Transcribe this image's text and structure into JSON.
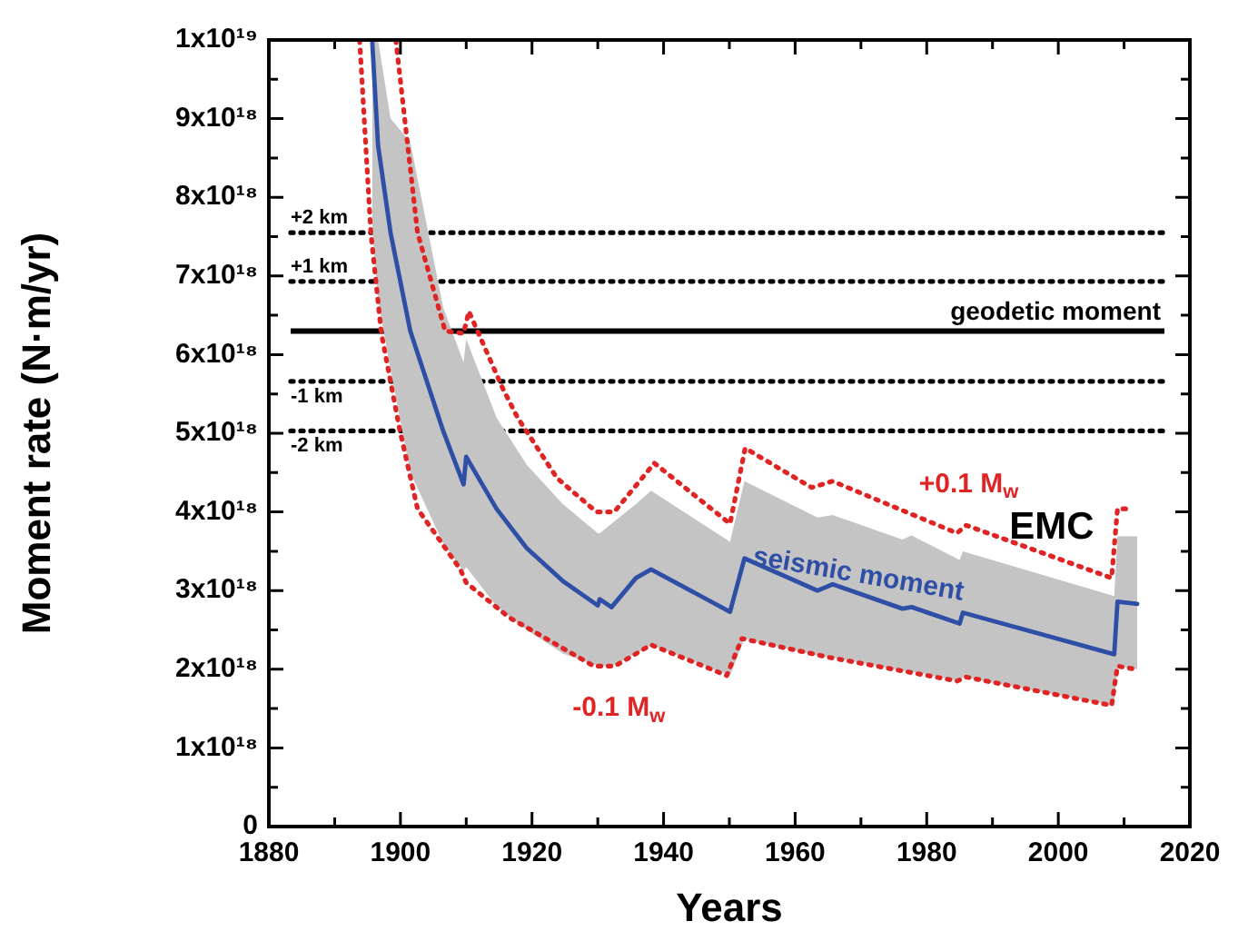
{
  "chart_data": {
    "type": "line",
    "xlabel": "Years",
    "ylabel": "Moment rate (N·m/yr)",
    "xlim": [
      1880,
      2020
    ],
    "xticks": [
      1880,
      {
        "value": 1890,
        "label": null
      },
      1900,
      {
        "value": 1910,
        "label": null
      },
      1920,
      {
        "value": 1930,
        "label": null
      },
      1940,
      {
        "value": 1950,
        "label": null
      },
      1960,
      {
        "value": 1970,
        "label": null
      },
      1980,
      {
        "value": 1990,
        "label": null
      },
      2000,
      {
        "value": 2010,
        "label": null
      },
      2020
    ],
    "ylim": [
      0,
      1e+19
    ],
    "yticks": [
      0,
      {
        "value": 5e+17,
        "label": null
      },
      {
        "value": 1e+18,
        "label": "1x10¹⁸"
      },
      {
        "value": 1.5e+18,
        "label": null
      },
      {
        "value": 2e+18,
        "label": "2x10¹⁸"
      },
      {
        "value": 2.5e+18,
        "label": null
      },
      {
        "value": 3e+18,
        "label": "3x10¹⁸"
      },
      {
        "value": 3.5e+18,
        "label": null
      },
      {
        "value": 4e+18,
        "label": "4x10¹⁸"
      },
      {
        "value": 4.5e+18,
        "label": null
      },
      {
        "value": 5e+18,
        "label": "5x10¹⁸"
      },
      {
        "value": 5.5e+18,
        "label": null
      },
      {
        "value": 6e+18,
        "label": "6x10¹⁸"
      },
      {
        "value": 6.5e+18,
        "label": null
      },
      {
        "value": 7e+18,
        "label": "7x10¹⁸"
      },
      {
        "value": 7.5e+18,
        "label": null
      },
      {
        "value": 8e+18,
        "label": "8x10¹⁸"
      },
      {
        "value": 8.5e+18,
        "label": null
      },
      {
        "value": 9e+18,
        "label": "9x10¹⁸"
      },
      {
        "value": 9.5e+18,
        "label": null
      },
      {
        "value": 1e+19,
        "label": "1x10¹⁹"
      }
    ],
    "legend": false,
    "marker": "none",
    "series": [
      {
        "name": "seismic moment",
        "color": "#2f4fa6",
        "line_style": "solid",
        "x": [
          1895.7,
          1896.6,
          1898.5,
          1901.5,
          1906.5,
          1909.6,
          1910.0,
          1914.6,
          1919.2,
          1924.7,
          1930.0,
          1930.3,
          1932.1,
          1935.8,
          1938.1,
          1950.1,
          1952.3,
          1963.4,
          1965.7,
          1976.3,
          1977.7,
          1985.0,
          1985.5,
          2008.5,
          2009.0,
          2012.0
        ],
        "values": [
          1e+19,
          8.66e+18,
          7.55e+18,
          6.3e+18,
          5.03e+18,
          4.35e+18,
          4.7e+18,
          4.04e+18,
          3.54e+18,
          3.12e+18,
          2.81e+18,
          2.89e+18,
          2.79e+18,
          3.16e+18,
          3.27e+18,
          2.73e+18,
          3.41e+18,
          3e+18,
          3.08e+18,
          2.77e+18,
          2.79e+18,
          2.58e+18,
          2.72e+18,
          2.19e+18,
          2.86e+18,
          2.83e+18
        ],
        "lower": [
          7.6e+18,
          6.7e+18,
          5.8e+18,
          4.5e+18,
          3.6e+18,
          3.25e+18,
          3.3e+18,
          2.8e+18,
          2.5e+18,
          2.2e+18,
          2.04e+18,
          2.04e+18,
          2.04e+18,
          2.2e+18,
          2.31e+18,
          1.92e+18,
          2.39e+18,
          2.17e+18,
          2.15e+18,
          1.98e+18,
          1.97e+18,
          1.85e+18,
          1.9e+18,
          1.54e+18,
          2.04e+18,
          2e+18
        ],
        "upper": [
          1e+19,
          1e+19,
          9e+18,
          8.7e+18,
          6.6e+18,
          5.9e+18,
          6.2e+18,
          5.2e+18,
          4.6e+18,
          4.1e+18,
          3.73e+18,
          3.73e+18,
          3.85e+18,
          4.1e+18,
          4.27e+18,
          3.62e+18,
          4.39e+18,
          3.93e+18,
          3.96e+18,
          3.65e+18,
          3.7e+18,
          3.39e+18,
          3.5e+18,
          2.93e+18,
          3.69e+18,
          3.69e+18
        ]
      },
      {
        "name": "+0.1 M$_{w}$",
        "color": "#e02424",
        "line_style": "dotted",
        "x": [
          1899.3,
          1902.6,
          1906.8,
          1909.6,
          1910.4,
          1915.5,
          1917.8,
          1923.8,
          1929.8,
          1932.5,
          1938.6,
          1950.1,
          1952.4,
          1962.5,
          1965.7,
          1984.6,
          1986.0,
          2008.1,
          2009.0,
          2011.0
        ],
        "values": [
          1e+19,
          7.55e+18,
          6.3e+18,
          6.27e+18,
          6.55e+18,
          5.58e+18,
          5.2e+18,
          4.43e+18,
          4e+18,
          4e+18,
          4.62e+18,
          3.85e+18,
          4.81e+18,
          4.31e+18,
          4.39e+18,
          3.73e+18,
          3.83e+18,
          3.16e+18,
          4.04e+18,
          4.04e+18
        ]
      },
      {
        "name": "-0.1 M$_{w}$",
        "color": "#e02424",
        "line_style": "dotted",
        "x": [
          1893.8,
          1895.5,
          1897.1,
          1899.9,
          1902.6,
          1909.1,
          1910.0,
          1916.5,
          1929.4,
          1932.6,
          1938.1,
          1949.6,
          1951.9,
          1965.2,
          1984.6,
          1986.0,
          2008.1,
          2009.0,
          2011.7
        ],
        "values": [
          1e+19,
          7.55e+18,
          6.27e+18,
          5.04e+18,
          4.04e+18,
          3.27e+18,
          3.1e+18,
          2.66e+18,
          2.04e+18,
          2.04e+18,
          2.31e+18,
          1.92e+18,
          2.39e+18,
          2.15e+18,
          1.85e+18,
          1.9e+18,
          1.54e+18,
          2.04e+18,
          2e+18
        ]
      }
    ],
    "ref_lines": [
      {
        "axis": "y",
        "value": 7.55e+18,
        "label": "+2 km",
        "color": "#000000",
        "line_style": "dotted"
      },
      {
        "axis": "y",
        "value": 6.93e+18,
        "label": "+1 km",
        "color": "#000000",
        "line_style": "dotted"
      },
      {
        "axis": "y",
        "value": 6.3e+18,
        "label": "geodetic moment",
        "color": "#000000",
        "line_style": "solid"
      },
      {
        "axis": "y",
        "value": 5.66e+18,
        "label": "-1 km",
        "color": "#000000",
        "line_style": "dotted"
      },
      {
        "axis": "y",
        "value": 5.03e+18,
        "label": "-2 km",
        "color": "#000000",
        "line_style": "dotted"
      }
    ],
    "annotations": [
      "EMC"
    ]
  }
}
